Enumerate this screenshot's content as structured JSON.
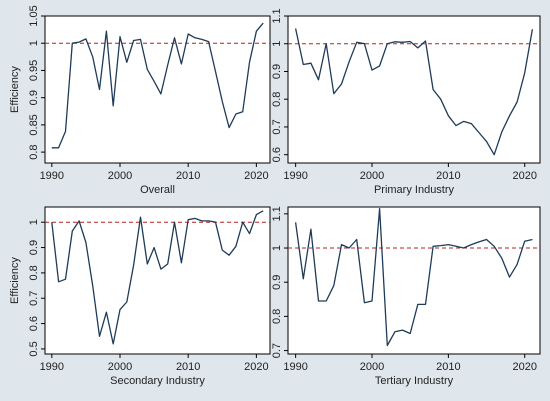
{
  "figure": {
    "background": "#dfe7ec",
    "plot_background": "#ffffff",
    "line_color": "#1f3b57",
    "reference_line_color": "#b22222",
    "reference_value": 1
  },
  "chart_data": [
    {
      "type": "line",
      "title": "Overall",
      "xlabel": "Overall",
      "ylabel": "Efficiency",
      "xlim": [
        1989,
        2022
      ],
      "ylim": [
        0.78,
        1.05
      ],
      "xticks": [
        1990,
        2000,
        2010,
        2020
      ],
      "yticks": [
        0.8,
        0.85,
        0.9,
        0.95,
        1,
        1.05
      ],
      "ytick_labels": [
        "0.8",
        "0.85",
        "0.9",
        "0.95",
        "1",
        "1.05"
      ],
      "reference_line": 1,
      "grid": false,
      "x": [
        1990,
        1991,
        1992,
        1993,
        1994,
        1995,
        1996,
        1997,
        1998,
        1999,
        2000,
        2001,
        2002,
        2003,
        2004,
        2005,
        2006,
        2007,
        2008,
        2009,
        2010,
        2011,
        2012,
        2013,
        2014,
        2015,
        2016,
        2017,
        2018,
        2019,
        2020,
        2021
      ],
      "y": [
        0.808,
        0.808,
        0.838,
        1.0,
        1.002,
        1.008,
        0.975,
        0.915,
        1.022,
        0.885,
        1.012,
        0.965,
        1.005,
        1.007,
        0.952,
        0.93,
        0.907,
        0.96,
        1.01,
        0.962,
        1.017,
        1.01,
        1.007,
        1.003,
        0.948,
        0.893,
        0.845,
        0.87,
        0.874,
        0.965,
        1.022,
        1.037
      ]
    },
    {
      "type": "line",
      "title": "Primary Industry",
      "xlabel": "Primary Industry",
      "ylabel": "",
      "xlim": [
        1989,
        2022
      ],
      "ylim": [
        0.57,
        1.1
      ],
      "xticks": [
        1990,
        2000,
        2010,
        2020
      ],
      "yticks": [
        0.6,
        0.7,
        0.8,
        0.9,
        1,
        1.1
      ],
      "ytick_labels": [
        "0.6",
        "0.7",
        "0.8",
        "0.9",
        "1",
        "1.1"
      ],
      "reference_line": 1,
      "grid": false,
      "x": [
        1990,
        1991,
        1992,
        1993,
        1994,
        1995,
        1996,
        1997,
        1998,
        1999,
        2000,
        2001,
        2002,
        2003,
        2004,
        2005,
        2006,
        2007,
        2008,
        2009,
        2010,
        2011,
        2012,
        2013,
        2014,
        2015,
        2016,
        2017,
        2018,
        2019,
        2020,
        2021
      ],
      "y": [
        1.055,
        0.925,
        0.93,
        0.87,
        1.0,
        0.82,
        0.855,
        0.935,
        1.005,
        1.0,
        0.905,
        0.92,
        1.0,
        1.007,
        1.005,
        1.008,
        0.985,
        1.01,
        0.835,
        0.8,
        0.74,
        0.705,
        0.72,
        0.712,
        0.68,
        0.648,
        0.6,
        0.682,
        0.74,
        0.79,
        0.895,
        1.052
      ]
    },
    {
      "type": "line",
      "title": "Secondary Industry",
      "xlabel": "Secondary Industry",
      "ylabel": "Efficiency",
      "xlim": [
        1989,
        2022
      ],
      "ylim": [
        0.48,
        1.06
      ],
      "xticks": [
        1990,
        2000,
        2010,
        2020
      ],
      "yticks": [
        0.5,
        0.6,
        0.7,
        0.8,
        0.9,
        1
      ],
      "ytick_labels": [
        "0.5",
        "0.6",
        "0.7",
        "0.8",
        "0.9",
        "1"
      ],
      "reference_line": 1,
      "grid": false,
      "x": [
        1990,
        1991,
        1992,
        1993,
        1994,
        1995,
        1996,
        1997,
        1998,
        1999,
        2000,
        2001,
        2002,
        2003,
        2004,
        2005,
        2006,
        2007,
        2008,
        2009,
        2010,
        2011,
        2012,
        2013,
        2014,
        2015,
        2016,
        2017,
        2018,
        2019,
        2020,
        2021
      ],
      "y": [
        1.0,
        0.765,
        0.775,
        0.965,
        1.005,
        0.92,
        0.75,
        0.55,
        0.645,
        0.52,
        0.655,
        0.685,
        0.83,
        1.02,
        0.835,
        0.9,
        0.815,
        0.835,
        1.0,
        0.84,
        1.01,
        1.015,
        1.005,
        1.005,
        1.0,
        0.89,
        0.87,
        0.905,
        1.0,
        0.955,
        1.03,
        1.045
      ]
    },
    {
      "type": "line",
      "title": "Tertiary Industry",
      "xlabel": "Tertiary Industry",
      "ylabel": "",
      "xlim": [
        1989,
        2022
      ],
      "ylim": [
        0.69,
        1.12
      ],
      "xticks": [
        1990,
        2000,
        2010,
        2020
      ],
      "yticks": [
        0.7,
        0.8,
        0.9,
        1,
        1.1
      ],
      "ytick_labels": [
        "0.7",
        "0.8",
        "0.9",
        "1",
        "1.1"
      ],
      "reference_line": 1,
      "grid": false,
      "x": [
        1990,
        1991,
        1992,
        1993,
        1994,
        1995,
        1996,
        1997,
        1998,
        1999,
        2000,
        2001,
        2002,
        2003,
        2004,
        2005,
        2006,
        2007,
        2008,
        2009,
        2010,
        2011,
        2012,
        2013,
        2014,
        2015,
        2016,
        2017,
        2018,
        2019,
        2020,
        2021
      ],
      "y": [
        1.075,
        0.91,
        1.055,
        0.845,
        0.845,
        0.89,
        1.01,
        1.0,
        1.025,
        0.84,
        0.845,
        1.115,
        0.715,
        0.755,
        0.76,
        0.75,
        0.835,
        0.835,
        1.005,
        1.007,
        1.01,
        1.005,
        1.0,
        1.01,
        1.018,
        1.025,
        1.005,
        0.97,
        0.915,
        0.952,
        1.02,
        1.025
      ]
    }
  ]
}
